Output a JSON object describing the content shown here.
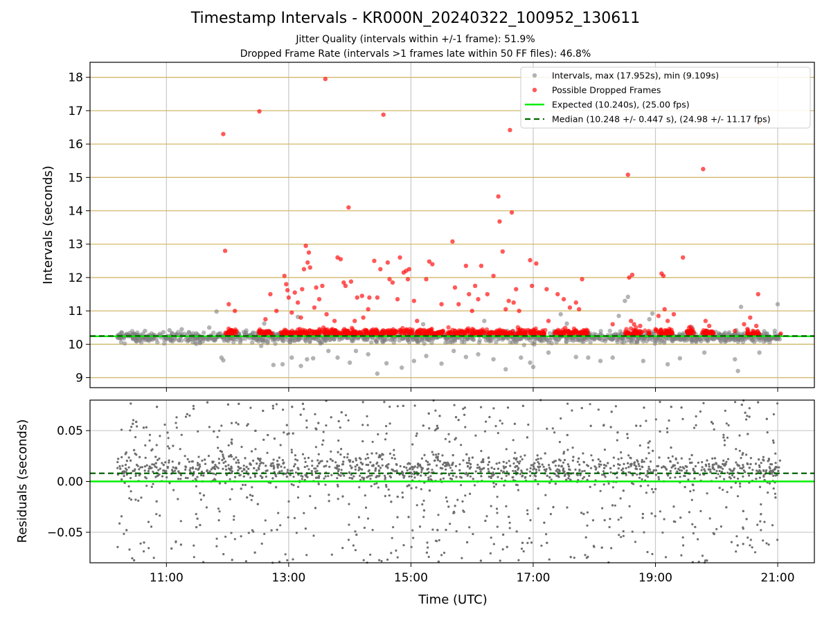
{
  "figure": {
    "title": "Timestamp Intervals - KR000N_20240322_100952_130611",
    "subtitle_jitter": "Jitter Quality (intervals within +/-1 frame): 51.9%",
    "subtitle_dropped": "Dropped Frame Rate (intervals >1 frames late within 50 FF files): 46.8%"
  },
  "colors": {
    "intervals": "#808080",
    "dropped": "#ff0000",
    "expected": "#00ee00",
    "median": "#006400",
    "hgrid_top": "#d2b86a",
    "grid": "#c8c8c8"
  },
  "chart_data": [
    {
      "type": "scatter",
      "panel": "top",
      "xlabel": "",
      "ylabel": "Intervals (seconds)",
      "x_unit": "hours UTC",
      "xlim": [
        9.75,
        21.6
      ],
      "ylim": [
        8.7,
        18.45
      ],
      "yticks": [
        9,
        10,
        11,
        12,
        13,
        14,
        15,
        16,
        17,
        18
      ],
      "ytick_labels": [
        "9",
        "10",
        "11",
        "12",
        "13",
        "14",
        "15",
        "16",
        "17",
        "18"
      ],
      "xticks": [
        11,
        13,
        15,
        17,
        19,
        21
      ],
      "xtick_labels": [
        "11:00",
        "13:00",
        "15:00",
        "17:00",
        "19:00",
        "21:00"
      ],
      "grid": "on",
      "legend_position": "top-right",
      "legend": [
        "Intervals, max (17.952s), min (9.109s)",
        "Possible Dropped Frames",
        "Expected (10.240s), (25.00 fps)",
        "Median (10.248 +/- 0.447 s), (24.98 +/- 11.17 fps)"
      ],
      "reference_lines": {
        "expected": 10.24,
        "median": 10.248
      },
      "series": [
        {
          "name": "Intervals, max (17.952s), min (9.109s)",
          "points": [
            [
              10.2,
              10.25
            ],
            [
              10.35,
              10.31
            ],
            [
              10.5,
              10.12
            ],
            [
              10.65,
              10.4
            ],
            [
              10.8,
              10.18
            ],
            [
              10.95,
              10.36
            ],
            [
              11.1,
              10.09
            ],
            [
              11.25,
              10.45
            ],
            [
              11.4,
              10.22
            ],
            [
              11.55,
              10.05
            ],
            [
              11.7,
              10.5
            ],
            [
              11.82,
              10.98
            ],
            [
              11.9,
              9.6
            ],
            [
              11.93,
              9.52
            ],
            [
              12.1,
              10.15
            ],
            [
              12.3,
              10.35
            ],
            [
              12.55,
              9.95
            ],
            [
              12.75,
              9.38
            ],
            [
              12.9,
              9.4
            ],
            [
              13.05,
              9.6
            ],
            [
              13.2,
              9.35
            ],
            [
              13.3,
              9.55
            ],
            [
              13.4,
              9.58
            ],
            [
              13.5,
              10.1
            ],
            [
              13.65,
              9.8
            ],
            [
              13.8,
              9.6
            ],
            [
              14.0,
              9.45
            ],
            [
              14.1,
              9.8
            ],
            [
              14.3,
              9.7
            ],
            [
              14.45,
              9.12
            ],
            [
              14.6,
              9.43
            ],
            [
              14.85,
              9.3
            ],
            [
              15.05,
              9.5
            ],
            [
              15.25,
              9.65
            ],
            [
              15.5,
              9.42
            ],
            [
              15.7,
              9.8
            ],
            [
              15.9,
              9.62
            ],
            [
              16.1,
              9.7
            ],
            [
              16.35,
              9.55
            ],
            [
              16.55,
              9.25
            ],
            [
              16.8,
              9.6
            ],
            [
              16.95,
              9.45
            ],
            [
              17.0,
              9.32
            ],
            [
              17.25,
              9.75
            ],
            [
              17.45,
              10.9
            ],
            [
              17.7,
              9.62
            ],
            [
              17.9,
              9.6
            ],
            [
              18.1,
              9.5
            ],
            [
              18.3,
              9.6
            ],
            [
              18.4,
              10.85
            ],
            [
              18.5,
              11.3
            ],
            [
              18.55,
              11.42
            ],
            [
              18.8,
              9.5
            ],
            [
              18.95,
              10.92
            ],
            [
              19.2,
              9.4
            ],
            [
              19.4,
              9.58
            ],
            [
              19.6,
              10.5
            ],
            [
              19.8,
              9.75
            ],
            [
              20.05,
              10.3
            ],
            [
              20.3,
              9.55
            ],
            [
              20.35,
              9.2
            ],
            [
              20.4,
              11.12
            ],
            [
              20.7,
              9.75
            ],
            [
              21.0,
              11.2
            ],
            [
              11.05,
              10.42
            ],
            [
              12.6,
              10.62
            ],
            [
              13.15,
              10.82
            ],
            [
              15.2,
              10.6
            ],
            [
              16.2,
              10.7
            ],
            [
              17.55,
              10.62
            ],
            [
              18.9,
              10.75
            ],
            [
              19.85,
              10.4
            ]
          ]
        },
        {
          "name": "Possible Dropped Frames",
          "points": [
            [
              11.93,
              16.3
            ],
            [
              11.96,
              12.8
            ],
            [
              12.02,
              11.2
            ],
            [
              12.12,
              11.0
            ],
            [
              12.52,
              16.98
            ],
            [
              12.62,
              10.75
            ],
            [
              12.7,
              11.5
            ],
            [
              12.8,
              11.0
            ],
            [
              12.93,
              12.05
            ],
            [
              12.96,
              11.8
            ],
            [
              12.98,
              11.62
            ],
            [
              13.0,
              11.4
            ],
            [
              13.05,
              10.95
            ],
            [
              13.1,
              11.55
            ],
            [
              13.15,
              11.25
            ],
            [
              13.2,
              10.8
            ],
            [
              13.22,
              11.65
            ],
            [
              13.25,
              12.25
            ],
            [
              13.28,
              12.95
            ],
            [
              13.31,
              12.45
            ],
            [
              13.33,
              12.75
            ],
            [
              13.35,
              12.3
            ],
            [
              13.42,
              11.1
            ],
            [
              13.45,
              11.7
            ],
            [
              13.5,
              11.35
            ],
            [
              13.55,
              11.75
            ],
            [
              13.6,
              17.95
            ],
            [
              13.62,
              10.9
            ],
            [
              13.75,
              10.7
            ],
            [
              13.8,
              12.6
            ],
            [
              13.85,
              12.55
            ],
            [
              13.9,
              11.85
            ],
            [
              13.93,
              11.75
            ],
            [
              13.98,
              14.1
            ],
            [
              14.02,
              11.88
            ],
            [
              14.08,
              10.7
            ],
            [
              14.12,
              11.4
            ],
            [
              14.2,
              11.45
            ],
            [
              14.22,
              10.8
            ],
            [
              14.3,
              11.05
            ],
            [
              14.32,
              11.4
            ],
            [
              14.4,
              12.5
            ],
            [
              14.45,
              11.4
            ],
            [
              14.5,
              12.25
            ],
            [
              14.55,
              16.88
            ],
            [
              14.62,
              12.45
            ],
            [
              14.65,
              11.95
            ],
            [
              14.7,
              11.85
            ],
            [
              14.78,
              11.35
            ],
            [
              14.82,
              12.6
            ],
            [
              14.88,
              12.15
            ],
            [
              14.92,
              12.2
            ],
            [
              14.95,
              11.95
            ],
            [
              14.97,
              12.25
            ],
            [
              15.05,
              11.3
            ],
            [
              15.1,
              10.7
            ],
            [
              15.25,
              11.95
            ],
            [
              15.3,
              12.48
            ],
            [
              15.35,
              12.4
            ],
            [
              15.5,
              11.2
            ],
            [
              15.68,
              13.08
            ],
            [
              15.72,
              11.7
            ],
            [
              15.78,
              11.2
            ],
            [
              15.9,
              12.35
            ],
            [
              15.95,
              11.5
            ],
            [
              16.0,
              11.0
            ],
            [
              16.05,
              11.75
            ],
            [
              16.1,
              11.35
            ],
            [
              16.15,
              12.35
            ],
            [
              16.25,
              11.5
            ],
            [
              16.35,
              12.05
            ],
            [
              16.43,
              14.43
            ],
            [
              16.45,
              13.68
            ],
            [
              16.5,
              12.78
            ],
            [
              16.55,
              11.05
            ],
            [
              16.6,
              11.3
            ],
            [
              16.62,
              16.42
            ],
            [
              16.65,
              13.95
            ],
            [
              16.68,
              11.25
            ],
            [
              16.72,
              11.65
            ],
            [
              16.77,
              11.0
            ],
            [
              16.95,
              12.52
            ],
            [
              17.05,
              12.42
            ],
            [
              16.98,
              11.75
            ],
            [
              17.22,
              11.65
            ],
            [
              17.25,
              10.7
            ],
            [
              17.4,
              11.5
            ],
            [
              17.5,
              11.35
            ],
            [
              17.6,
              11.1
            ],
            [
              17.7,
              11.25
            ],
            [
              17.75,
              11.05
            ],
            [
              17.8,
              11.95
            ],
            [
              18.3,
              10.6
            ],
            [
              18.55,
              15.08
            ],
            [
              18.57,
              12.0
            ],
            [
              18.62,
              12.08
            ],
            [
              18.6,
              10.7
            ],
            [
              18.65,
              10.6
            ],
            [
              18.75,
              10.55
            ],
            [
              19.05,
              10.85
            ],
            [
              19.1,
              12.12
            ],
            [
              19.13,
              12.05
            ],
            [
              19.15,
              11.05
            ],
            [
              19.2,
              10.7
            ],
            [
              19.3,
              10.9
            ],
            [
              19.45,
              12.6
            ],
            [
              19.55,
              10.5
            ],
            [
              19.78,
              15.25
            ],
            [
              19.82,
              10.7
            ],
            [
              19.88,
              10.55
            ],
            [
              20.3,
              10.4
            ],
            [
              20.45,
              10.6
            ],
            [
              20.55,
              10.8
            ],
            [
              20.65,
              10.55
            ],
            [
              20.68,
              11.5
            ],
            [
              21.05,
              10.32
            ],
            [
              20.7,
              16.62
            ]
          ]
        },
        {
          "name": "Expected (10.240s), (25.00 fps)",
          "y": 10.24
        },
        {
          "name": "Median (10.248 +/- 0.447 s), (24.98 +/- 11.17 fps)",
          "y": 10.248
        }
      ]
    },
    {
      "type": "scatter",
      "panel": "bottom",
      "xlabel": "Time (UTC)",
      "ylabel": "Residuals (seconds)",
      "xlim": [
        9.75,
        21.6
      ],
      "ylim": [
        -0.08,
        0.08
      ],
      "yticks": [
        -0.05,
        0.0,
        0.05
      ],
      "ytick_labels": [
        "−0.05",
        "0.00",
        "0.05"
      ],
      "xticks": [
        11,
        13,
        15,
        17,
        19,
        21
      ],
      "xtick_labels": [
        "11:00",
        "13:00",
        "15:00",
        "17:00",
        "19:00",
        "21:00"
      ],
      "grid": "on",
      "reference_lines": {
        "zero": 0.0,
        "median_offset": 0.008
      },
      "x_range": [
        10.2,
        21.05
      ]
    }
  ]
}
